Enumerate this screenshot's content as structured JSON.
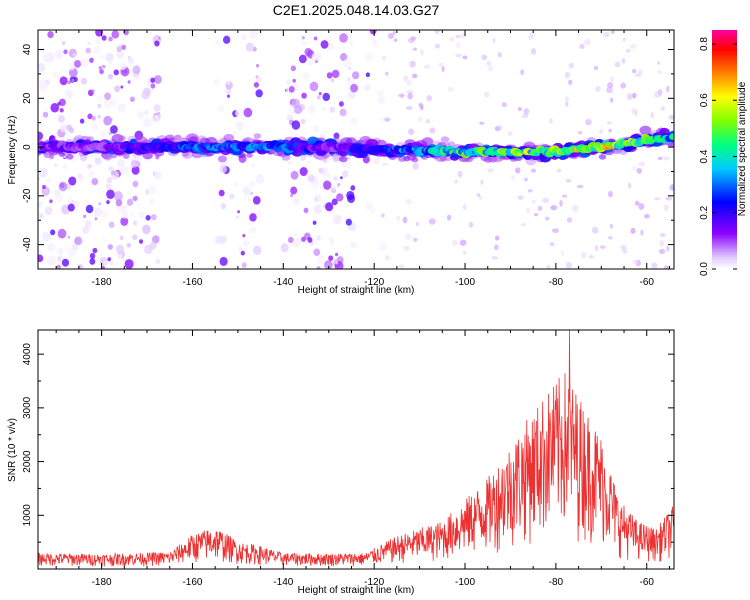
{
  "title": "C2E1.2025.048.14.03.G27",
  "chart_data": [
    {
      "type": "heatmap",
      "xlabel": "Height of straight line (km)",
      "ylabel": "Frequency (Hz)",
      "xlim": [
        -194,
        -54
      ],
      "ylim": [
        -50,
        48
      ],
      "x_ticks": [
        -180,
        -160,
        -140,
        -120,
        -100,
        -80,
        -60
      ],
      "y_ticks": [
        -40,
        -20,
        0,
        20,
        40
      ],
      "colorbar": {
        "label": "Normalized spectral amplitude",
        "range": [
          0,
          0.85
        ],
        "ticks": [
          0.0,
          0.2,
          0.4,
          0.6,
          0.8
        ],
        "colormap": [
          "#ffffff",
          "#e0c8ff",
          "#8c00ff",
          "#0000ff",
          "#00ccff",
          "#00ff80",
          "#80ff00",
          "#ffff00",
          "#ff8000",
          "#ff0000",
          "#ff00a0"
        ]
      },
      "carrier": {
        "x": [
          -194,
          -180,
          -160,
          -140,
          -130,
          -120,
          -100,
          -80,
          -70,
          -60,
          -54
        ],
        "freq": [
          0,
          0,
          0,
          0,
          0,
          -1,
          -2,
          -2,
          0,
          3,
          4
        ],
        "peak_amplitude": [
          0.2,
          0.15,
          0.35,
          0.35,
          0.15,
          0.3,
          0.55,
          0.65,
          0.75,
          0.55,
          0.45
        ]
      },
      "grid": false
    },
    {
      "type": "line",
      "xlabel": "Height of straight line (km)",
      "ylabel": "SNR (10 * v/v)",
      "xlim": [
        -194,
        -54
      ],
      "ylim": [
        0,
        4450
      ],
      "x_ticks": [
        -180,
        -160,
        -140,
        -120,
        -100,
        -80,
        -60
      ],
      "y_ticks": [
        1000,
        2000,
        3000,
        4000
      ],
      "series": [
        {
          "color": "#ee3030",
          "envelope": {
            "x": [
              -194,
              -180,
              -165,
              -160,
              -155,
              -150,
              -145,
              -140,
              -130,
              -122,
              -115,
              -105,
              -95,
              -88,
              -82,
              -78,
              -74,
              -70,
              -66,
              -62,
              -58,
              -54
            ],
            "y": [
              300,
              280,
              320,
              650,
              800,
              520,
              430,
              300,
              290,
              300,
              620,
              900,
              1700,
              2600,
              3300,
              3700,
              3100,
              2500,
              1300,
              900,
              750,
              1200
            ]
          },
          "peak": {
            "x": -77,
            "y": 4450
          }
        }
      ],
      "grid": false
    }
  ]
}
